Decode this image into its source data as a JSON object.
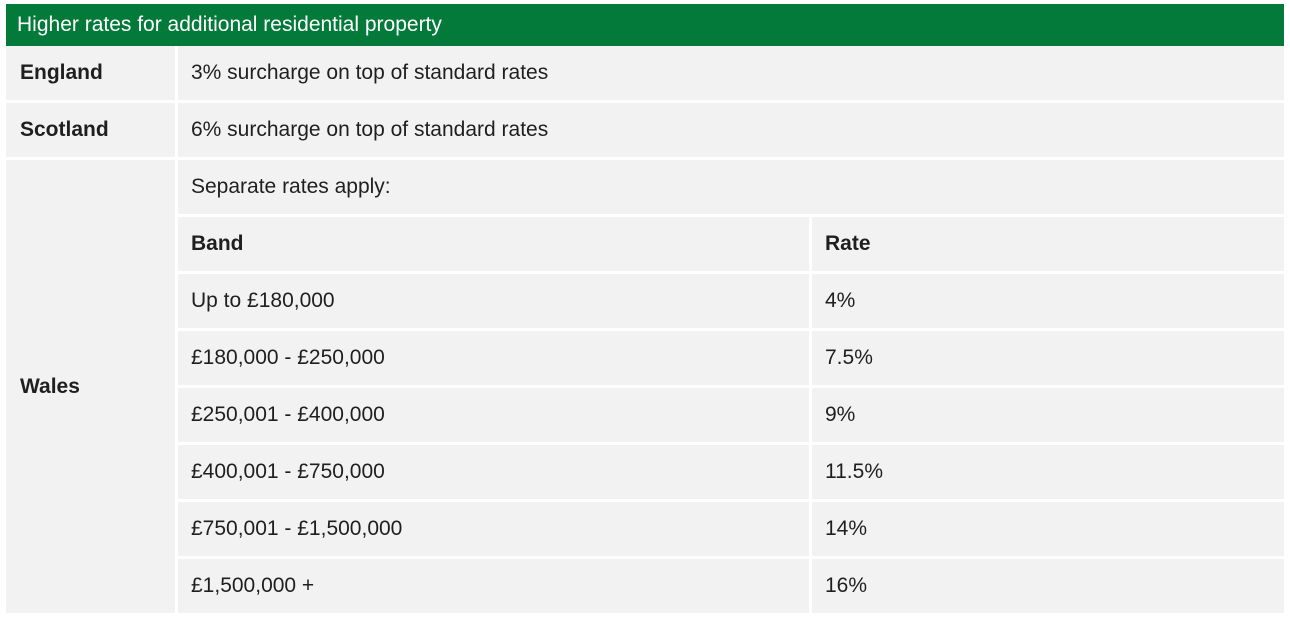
{
  "title": "Higher rates for additional residential property",
  "england": {
    "label": "England",
    "text": "3% surcharge on top of standard rates"
  },
  "scotland": {
    "label": "Scotland",
    "text": "6% surcharge on top of standard rates"
  },
  "wales": {
    "label": "Wales",
    "intro": "Separate rates apply:",
    "headers": {
      "band": "Band",
      "rate": "Rate"
    },
    "rows": [
      {
        "band": "Up to £180,000",
        "rate": "4%"
      },
      {
        "band": "£180,000 - £250,000",
        "rate": "7.5%"
      },
      {
        "band": "£250,001 - £400,000",
        "rate": "9%"
      },
      {
        "band": "£400,001 - £750,000",
        "rate": "11.5%"
      },
      {
        "band": "£750,001 - £1,500,000",
        "rate": "14%"
      },
      {
        "band": "£1,500,000 +",
        "rate": "16%"
      }
    ]
  },
  "colors": {
    "header_bg": "#037a3a",
    "cell_bg": "#f2f2f2"
  }
}
